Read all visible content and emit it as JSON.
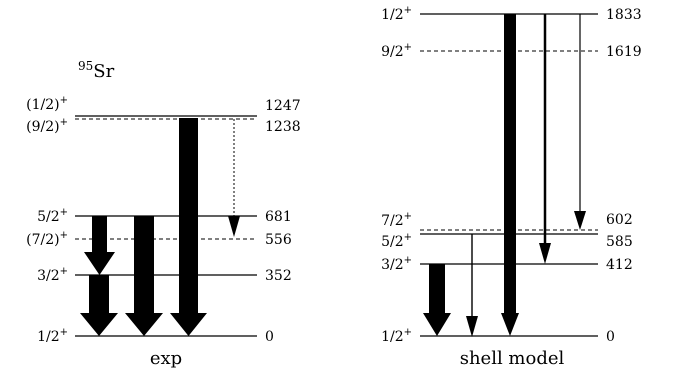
{
  "nucleus": {
    "mass": "95",
    "symbol": "Sr"
  },
  "panels": {
    "exp": {
      "title": "exp",
      "levels": [
        {
          "spin": "1/2+",
          "energy": "0",
          "style": "solid"
        },
        {
          "spin": "3/2+",
          "energy": "352",
          "style": "solid"
        },
        {
          "spin": "(7/2)+",
          "energy": "556",
          "style": "dashed"
        },
        {
          "spin": "5/2+",
          "energy": "681",
          "style": "solid"
        },
        {
          "spin": "(9/2)+",
          "energy": "1238",
          "style": "dashed"
        },
        {
          "spin": "(1/2)+",
          "energy": "1247",
          "style": "solid"
        }
      ],
      "transitions": [
        {
          "from": "5/2+",
          "to": "3/2+",
          "strength": "strong"
        },
        {
          "from": "3/2+",
          "to": "1/2+",
          "strength": "strong"
        },
        {
          "from": "5/2+",
          "to": "1/2+",
          "strength": "strong"
        },
        {
          "from": "(1/2)+",
          "to": "1/2+",
          "strength": "strong"
        },
        {
          "from": "(9/2)+",
          "to": "5/2+",
          "strength": "weak",
          "style": "dotted"
        }
      ]
    },
    "shell_model": {
      "title": "shell model",
      "levels": [
        {
          "spin": "1/2+",
          "energy": "0",
          "style": "solid"
        },
        {
          "spin": "3/2+",
          "energy": "412",
          "style": "solid"
        },
        {
          "spin": "5/2+",
          "energy": "585",
          "style": "solid"
        },
        {
          "spin": "7/2+",
          "energy": "602",
          "style": "dashed"
        },
        {
          "spin": "9/2+",
          "energy": "1619",
          "style": "dashed"
        },
        {
          "spin": "1/2+",
          "energy": "1833",
          "style": "solid"
        }
      ],
      "transitions": [
        {
          "from": "3/2+",
          "to": "1/2+",
          "strength": "strong"
        },
        {
          "from": "5/2+",
          "to": "1/2+",
          "strength": "weak"
        },
        {
          "from": "1/2+ (1833)",
          "to": "1/2+",
          "strength": "strong"
        },
        {
          "from": "1/2+ (1833)",
          "to": "3/2+",
          "strength": "medium"
        },
        {
          "from": "1/2+ (1833)",
          "to": "5/2+",
          "strength": "weak"
        }
      ]
    }
  }
}
